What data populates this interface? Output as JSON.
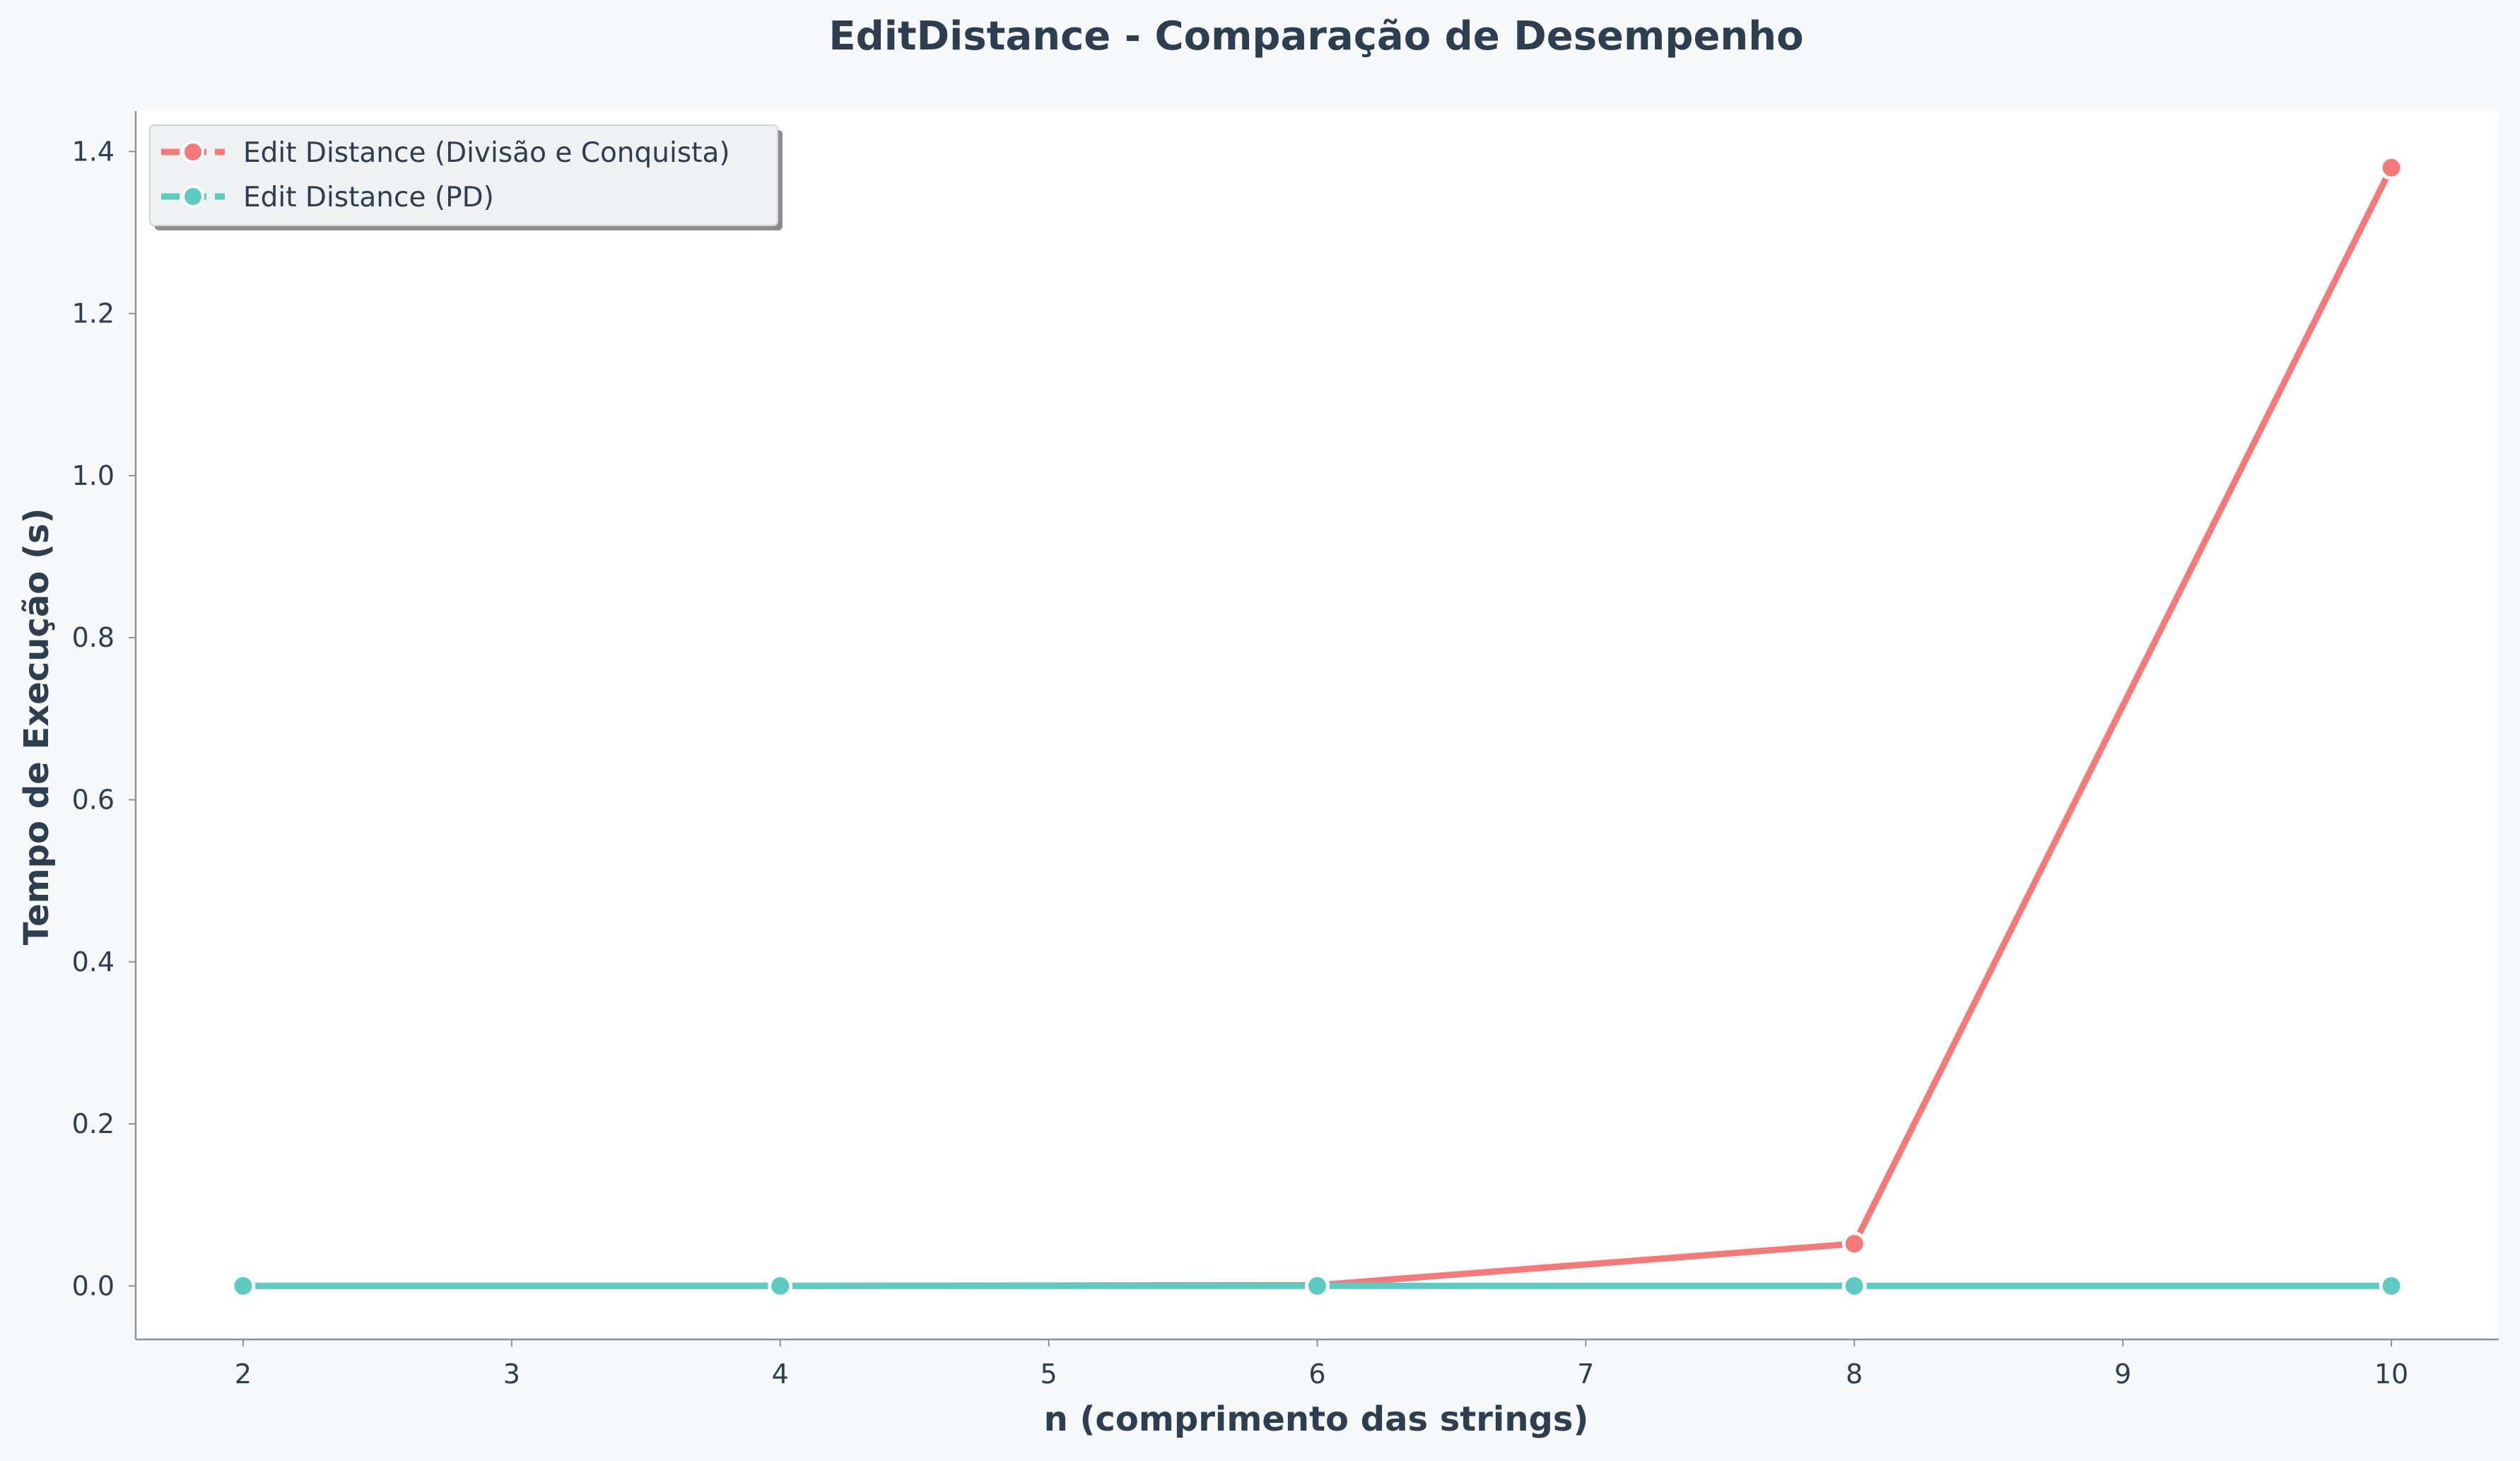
{
  "chart_data": {
    "type": "line",
    "title": "EditDistance - Comparação de Desempenho",
    "xlabel": "n (comprimento das strings)",
    "ylabel": "Tempo de Execução (s)",
    "xlim": [
      1.6,
      10.4
    ],
    "ylim": [
      -0.066,
      1.45
    ],
    "xticks": [
      2,
      3,
      4,
      5,
      6,
      7,
      8,
      9,
      10
    ],
    "xtick_labels": [
      "2",
      "3",
      "4",
      "5",
      "6",
      "7",
      "8",
      "9",
      "10"
    ],
    "yticks": [
      0.0,
      0.2,
      0.4,
      0.6,
      0.8,
      1.0,
      1.2,
      1.4
    ],
    "ytick_labels": [
      "0.0",
      "0.2",
      "0.4",
      "0.6",
      "0.8",
      "1.0",
      "1.2",
      "1.4"
    ],
    "grid": false,
    "legend_position": "top-left",
    "x": [
      2,
      4,
      6,
      8,
      10
    ],
    "series": [
      {
        "name": "Edit Distance (Divisão e Conquista)",
        "values": [
          0.0,
          0.0,
          0.001,
          0.052,
          1.38
        ],
        "color": "#f47a7a"
      },
      {
        "name": "Edit Distance (PD)",
        "values": [
          0.0,
          0.0,
          0.0,
          0.0,
          0.0
        ],
        "color": "#5ecbc2"
      }
    ]
  }
}
